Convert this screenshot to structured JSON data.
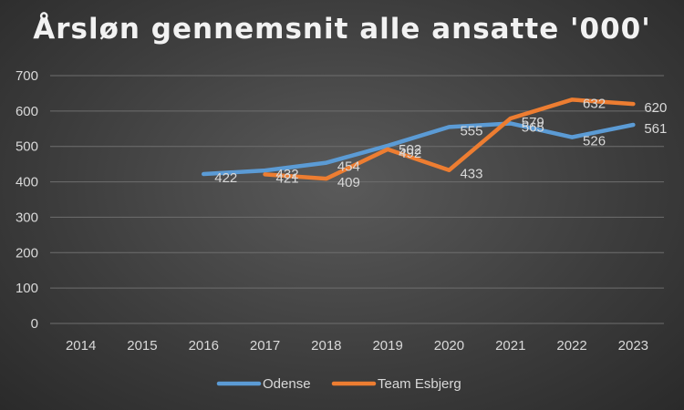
{
  "chart_data": {
    "type": "line",
    "title": "Årsløn gennemsnit alle ansatte '000'",
    "xlabel": "",
    "ylabel": "",
    "categories": [
      "2014",
      "2015",
      "2016",
      "2017",
      "2018",
      "2019",
      "2020",
      "2021",
      "2022",
      "2023"
    ],
    "ylim": [
      0,
      700
    ],
    "yticks": [
      0,
      100,
      200,
      300,
      400,
      500,
      600,
      700
    ],
    "grid": true,
    "legend_position": "bottom",
    "series": [
      {
        "name": "Odense",
        "color": "#5b9bd5",
        "values": [
          null,
          null,
          422,
          432,
          454,
          502,
          555,
          565,
          526,
          561
        ]
      },
      {
        "name": "Team Esbjerg",
        "color": "#ed7d31",
        "values": [
          null,
          null,
          null,
          421,
          409,
          492,
          433,
          579,
          632,
          620
        ]
      }
    ]
  }
}
